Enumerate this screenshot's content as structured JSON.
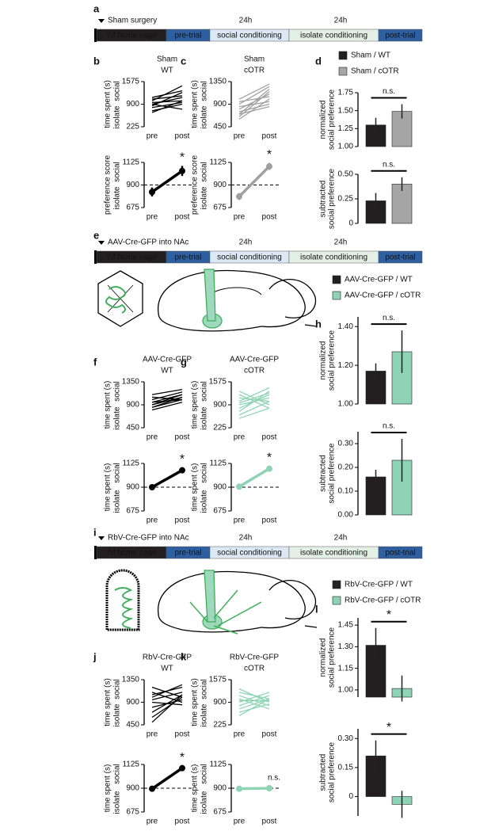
{
  "figure": {
    "panels": [
      "a",
      "b",
      "c",
      "d",
      "e",
      "f",
      "g",
      "h",
      "i",
      "j",
      "k",
      "l"
    ],
    "timelines": [
      {
        "title": "Sham surgery",
        "durations": [
          "24h",
          "24h"
        ],
        "stages": [
          "7d home cage",
          "pre-trial",
          "social conditioning",
          "isolate conditioning",
          "post-trial"
        ]
      },
      {
        "title": "AAV-Cre-GFP into NAc",
        "durations": [
          "24h",
          "24h"
        ],
        "stages": [
          "7d home cage",
          "pre-trial",
          "social conditioning",
          "isolate conditioning",
          "post-trial"
        ]
      },
      {
        "title": "RbV-Cre-GFP into NAc",
        "durations": [
          "24h",
          "24h"
        ],
        "stages": [
          "7d home cage",
          "pre-trial",
          "social conditioning",
          "isolate conditioning",
          "post-trial"
        ]
      }
    ]
  },
  "chart_data": [
    {
      "type": "paired",
      "title": [
        "Sham",
        "WT"
      ],
      "ylabel": "time spent (s)",
      "ylabel_top": "social",
      "ylabel_bottom": "isolate",
      "categories": [
        "pre",
        "post"
      ],
      "ylim": [
        225,
        1575
      ],
      "yticks": [
        225,
        900,
        1575
      ],
      "color": "#000000",
      "series": [
        {
          "values": [
            900,
            1100
          ]
        },
        {
          "values": [
            1000,
            1450
          ]
        },
        {
          "values": [
            850,
            1250
          ]
        },
        {
          "values": [
            950,
            1000
          ]
        },
        {
          "values": [
            800,
            950
          ]
        },
        {
          "values": [
            700,
            900
          ]
        },
        {
          "values": [
            1050,
            1150
          ]
        },
        {
          "values": [
            900,
            750
          ]
        },
        {
          "values": [
            650,
            1000
          ]
        },
        {
          "values": [
            1100,
            1300
          ]
        }
      ]
    },
    {
      "type": "line",
      "ylabel": "preference score",
      "ylabel_top": "social",
      "ylabel_bottom": "isolate",
      "categories": [
        "pre",
        "post"
      ],
      "ylim": [
        675,
        1125
      ],
      "yticks": [
        675,
        900,
        1125
      ],
      "color": "#000000",
      "values": [
        830,
        1040
      ],
      "errors": [
        45,
        50
      ],
      "reference": 900,
      "annotation": "*"
    },
    {
      "type": "paired",
      "title": [
        "Sham",
        "cOTR"
      ],
      "ylabel": "time spent (s)",
      "ylabel_top": "social",
      "ylabel_bottom": "isolate",
      "categories": [
        "pre",
        "post"
      ],
      "ylim": [
        450,
        1350
      ],
      "yticks": [
        450,
        900,
        1350
      ],
      "color": "#a0a0a0",
      "series": [
        {
          "values": [
            700,
            1200
          ]
        },
        {
          "values": [
            800,
            1100
          ]
        },
        {
          "values": [
            600,
            1000
          ]
        },
        {
          "values": [
            900,
            1250
          ]
        },
        {
          "values": [
            750,
            900
          ]
        },
        {
          "values": [
            850,
            950
          ]
        },
        {
          "values": [
            650,
            1150
          ]
        },
        {
          "values": [
            950,
            1050
          ]
        },
        {
          "values": [
            700,
            850
          ]
        },
        {
          "values": [
            1000,
            1300
          ]
        }
      ]
    },
    {
      "type": "line",
      "ylabel": "preference score",
      "ylabel_top": "social",
      "ylabel_bottom": "isolate",
      "categories": [
        "pre",
        "post"
      ],
      "ylim": [
        675,
        1125
      ],
      "yticks": [
        675,
        900,
        1125
      ],
      "color": "#a0a0a0",
      "values": [
        785,
        1085
      ],
      "errors": [
        35,
        35
      ],
      "reference": 900,
      "annotation": "*"
    },
    {
      "type": "bar",
      "ylabel": [
        "normalized",
        "social preference"
      ],
      "ylim": [
        1,
        1.75
      ],
      "yticks": [
        {
          "value": 1,
          "label": "1.00"
        },
        1.25,
        {
          "value": 1.5,
          "label": "1.50"
        },
        1.75
      ],
      "annotation": "n.s.",
      "series": [
        {
          "name": "Sham / WT",
          "color": "#231f20",
          "values": [
            1.3
          ],
          "errors": [
            0.1
          ]
        },
        {
          "name": "Sham / cOTR",
          "color": "#a6a6a6",
          "values": [
            1.49
          ],
          "errors": [
            0.1
          ]
        }
      ]
    },
    {
      "type": "bar",
      "ylabel": [
        "subtracted",
        "social preference"
      ],
      "ylim": [
        0,
        0.5
      ],
      "yticks": [
        0,
        0.25,
        {
          "value": 0.5,
          "label": "0.50"
        }
      ],
      "annotation": "n.s.",
      "series": [
        {
          "color": "#231f20",
          "values": [
            0.23
          ],
          "errors": [
            0.08
          ]
        },
        {
          "color": "#a6a6a6",
          "values": [
            0.4
          ],
          "errors": [
            0.07
          ]
        }
      ]
    },
    {
      "type": "paired",
      "title": [
        "AAV-Cre-GFP",
        "WT"
      ],
      "ylabel": "time spent (s)",
      "ylabel_top": "social",
      "ylabel_bottom": "isolate",
      "categories": [
        "pre",
        "post"
      ],
      "ylim": [
        450,
        1350
      ],
      "yticks": [
        450,
        900,
        1350
      ],
      "color": "#000000",
      "series": [
        {
          "values": [
            900,
            1100
          ]
        },
        {
          "values": [
            1000,
            1150
          ]
        },
        {
          "values": [
            850,
            1050
          ]
        },
        {
          "values": [
            950,
            1000
          ]
        },
        {
          "values": [
            1100,
            1200
          ]
        },
        {
          "values": [
            800,
            950
          ]
        },
        {
          "values": [
            900,
            1050
          ]
        },
        {
          "values": [
            1050,
            1000
          ]
        },
        {
          "values": [
            950,
            1100
          ]
        },
        {
          "values": [
            850,
            1000
          ]
        }
      ]
    },
    {
      "type": "line",
      "ylabel": "time spent (s)",
      "ylabel_top": "social",
      "ylabel_bottom": "isolate",
      "categories": [
        "pre",
        "post"
      ],
      "ylim": [
        675,
        1125
      ],
      "yticks": [
        675,
        900,
        1125
      ],
      "color": "#000000",
      "values": [
        900,
        1060
      ],
      "errors": [
        20,
        25
      ],
      "reference": 900,
      "annotation": "*"
    },
    {
      "type": "paired",
      "title": [
        "AAV-Cre-GFP",
        "cOTR"
      ],
      "ylabel": "time spent (s)",
      "ylabel_top": "social",
      "ylabel_bottom": "isolate",
      "categories": [
        "pre",
        "post"
      ],
      "ylim": [
        225,
        1575
      ],
      "yticks": [
        225,
        900,
        1575
      ],
      "color": "#8fd3b6",
      "series": [
        {
          "values": [
            700,
            1300
          ]
        },
        {
          "values": [
            1200,
            800
          ]
        },
        {
          "values": [
            900,
            1100
          ]
        },
        {
          "values": [
            600,
            1000
          ]
        },
        {
          "values": [
            1000,
            1400
          ]
        },
        {
          "values": [
            1300,
            900
          ]
        },
        {
          "values": [
            800,
            1200
          ]
        },
        {
          "values": [
            500,
            800
          ]
        },
        {
          "values": [
            1100,
            1000
          ]
        },
        {
          "values": [
            950,
            1250
          ]
        }
      ]
    },
    {
      "type": "line",
      "ylabel": "time spent (s)",
      "ylabel_top": "social",
      "ylabel_bottom": "isolate",
      "categories": [
        "pre",
        "post"
      ],
      "ylim": [
        675,
        1125
      ],
      "yticks": [
        675,
        900,
        1125
      ],
      "color": "#8fd3b6",
      "values": [
        905,
        1075
      ],
      "errors": [
        20,
        25
      ],
      "reference": 900,
      "annotation": "*"
    },
    {
      "type": "bar",
      "ylabel": [
        "normalized",
        "social preference"
      ],
      "ylim": [
        1,
        1.45
      ],
      "yticks": [
        {
          "value": 1,
          "label": "1.00"
        },
        {
          "value": 1.2,
          "label": "1.20"
        },
        {
          "value": 1.4,
          "label": "1.40"
        }
      ],
      "annotation": "n.s.",
      "series": [
        {
          "name": "AAV-Cre-GFP / WT",
          "color": "#231f20",
          "values": [
            1.17
          ],
          "errors": [
            0.04
          ]
        },
        {
          "name": "AAV-Cre-GFP / cOTR",
          "color": "#8fd3b6",
          "values": [
            1.27
          ],
          "errors": [
            0.11
          ]
        }
      ]
    },
    {
      "type": "bar",
      "ylabel": [
        "subtracted",
        "social preference"
      ],
      "ylim": [
        0,
        0.35
      ],
      "yticks": [
        {
          "value": 0,
          "label": "0.00"
        },
        {
          "value": 0.1,
          "label": "0.10"
        },
        {
          "value": 0.2,
          "label": "0.20"
        },
        {
          "value": 0.3,
          "label": "0.30"
        }
      ],
      "annotation": "n.s.",
      "series": [
        {
          "color": "#231f20",
          "values": [
            0.16
          ],
          "errors": [
            0.03
          ]
        },
        {
          "color": "#8fd3b6",
          "values": [
            0.23
          ],
          "errors": [
            0.09
          ]
        }
      ]
    },
    {
      "type": "paired",
      "title": [
        "RbV-Cre-GFP",
        "WT"
      ],
      "ylabel": "time spent (s)",
      "ylabel_top": "social",
      "ylabel_bottom": "isolate",
      "categories": [
        "pre",
        "post"
      ],
      "ylim": [
        450,
        1350
      ],
      "yticks": [
        450,
        900,
        1350
      ],
      "color": "#000000",
      "series": [
        {
          "values": [
            1100,
            900
          ]
        },
        {
          "values": [
            1200,
            1000
          ]
        },
        {
          "values": [
            700,
            1050
          ]
        },
        {
          "values": [
            600,
            1000
          ]
        },
        {
          "values": [
            950,
            1100
          ]
        },
        {
          "values": [
            1000,
            1250
          ]
        },
        {
          "values": [
            800,
            950
          ]
        },
        {
          "values": [
            1050,
            1200
          ]
        },
        {
          "values": [
            500,
            1050
          ]
        },
        {
          "values": [
            900,
            850
          ]
        }
      ]
    },
    {
      "type": "line",
      "ylabel": "time spent (s)",
      "ylabel_top": "social",
      "ylabel_bottom": "isolate",
      "categories": [
        "pre",
        "post"
      ],
      "ylim": [
        675,
        1125
      ],
      "yticks": [
        675,
        900,
        1125
      ],
      "color": "#000000",
      "values": [
        895,
        1090
      ],
      "errors": [
        20,
        20
      ],
      "reference": 900,
      "annotation": "*"
    },
    {
      "type": "paired",
      "title": [
        "RbV-Cre-GFP",
        "cOTR"
      ],
      "ylabel": "time spent (s)",
      "ylabel_top": "social",
      "ylabel_bottom": "isolate",
      "categories": [
        "pre",
        "post"
      ],
      "ylim": [
        225,
        1575
      ],
      "yticks": [
        225,
        900,
        1575
      ],
      "color": "#8fd3b6",
      "series": [
        {
          "values": [
            1100,
            800
          ]
        },
        {
          "values": [
            700,
            1000
          ]
        },
        {
          "values": [
            1300,
            900
          ]
        },
        {
          "values": [
            900,
            1200
          ]
        },
        {
          "values": [
            600,
            850
          ]
        },
        {
          "values": [
            1000,
            700
          ]
        },
        {
          "values": [
            800,
            1100
          ]
        },
        {
          "values": [
            1200,
            1000
          ]
        },
        {
          "values": [
            950,
            950
          ]
        },
        {
          "values": [
            500,
            1000
          ]
        }
      ]
    },
    {
      "type": "line",
      "ylabel": "time spent (s)",
      "ylabel_top": "social",
      "ylabel_bottom": "isolate",
      "categories": [
        "pre",
        "post"
      ],
      "ylim": [
        675,
        1125
      ],
      "yticks": [
        675,
        900,
        1125
      ],
      "color": "#8fd3b6",
      "values": [
        895,
        900
      ],
      "errors": [
        15,
        25
      ],
      "reference": 900,
      "annotation": "n.s."
    },
    {
      "type": "bar",
      "ylabel": [
        "normalized",
        "social preference"
      ],
      "ylim": [
        0.95,
        1.5
      ],
      "yticks": [
        {
          "value": 1,
          "label": "1.00"
        },
        1.15,
        {
          "value": 1.3,
          "label": "1.30"
        },
        1.45
      ],
      "annotation": "*",
      "series": [
        {
          "name": "RbV-Cre-GFP / WT",
          "color": "#231f20",
          "values": [
            1.31
          ],
          "errors": [
            0.12
          ]
        },
        {
          "name": "RbV-Cre-GFP / cOTR",
          "color": "#8fd3b6",
          "values": [
            1.01
          ],
          "errors": [
            0.09
          ]
        }
      ]
    },
    {
      "type": "bar",
      "ylabel": [
        "subtracted",
        "social preference"
      ],
      "ylim": [
        -0.1,
        0.35
      ],
      "yticks": [
        0,
        0.15,
        {
          "value": 0.3,
          "label": "0.30"
        }
      ],
      "annotation": "*",
      "series": [
        {
          "color": "#231f20",
          "values": [
            0.21
          ],
          "errors": [
            0.08
          ]
        },
        {
          "color": "#8fd3b6",
          "values": [
            -0.04
          ],
          "errors": [
            0.07
          ]
        }
      ]
    }
  ]
}
